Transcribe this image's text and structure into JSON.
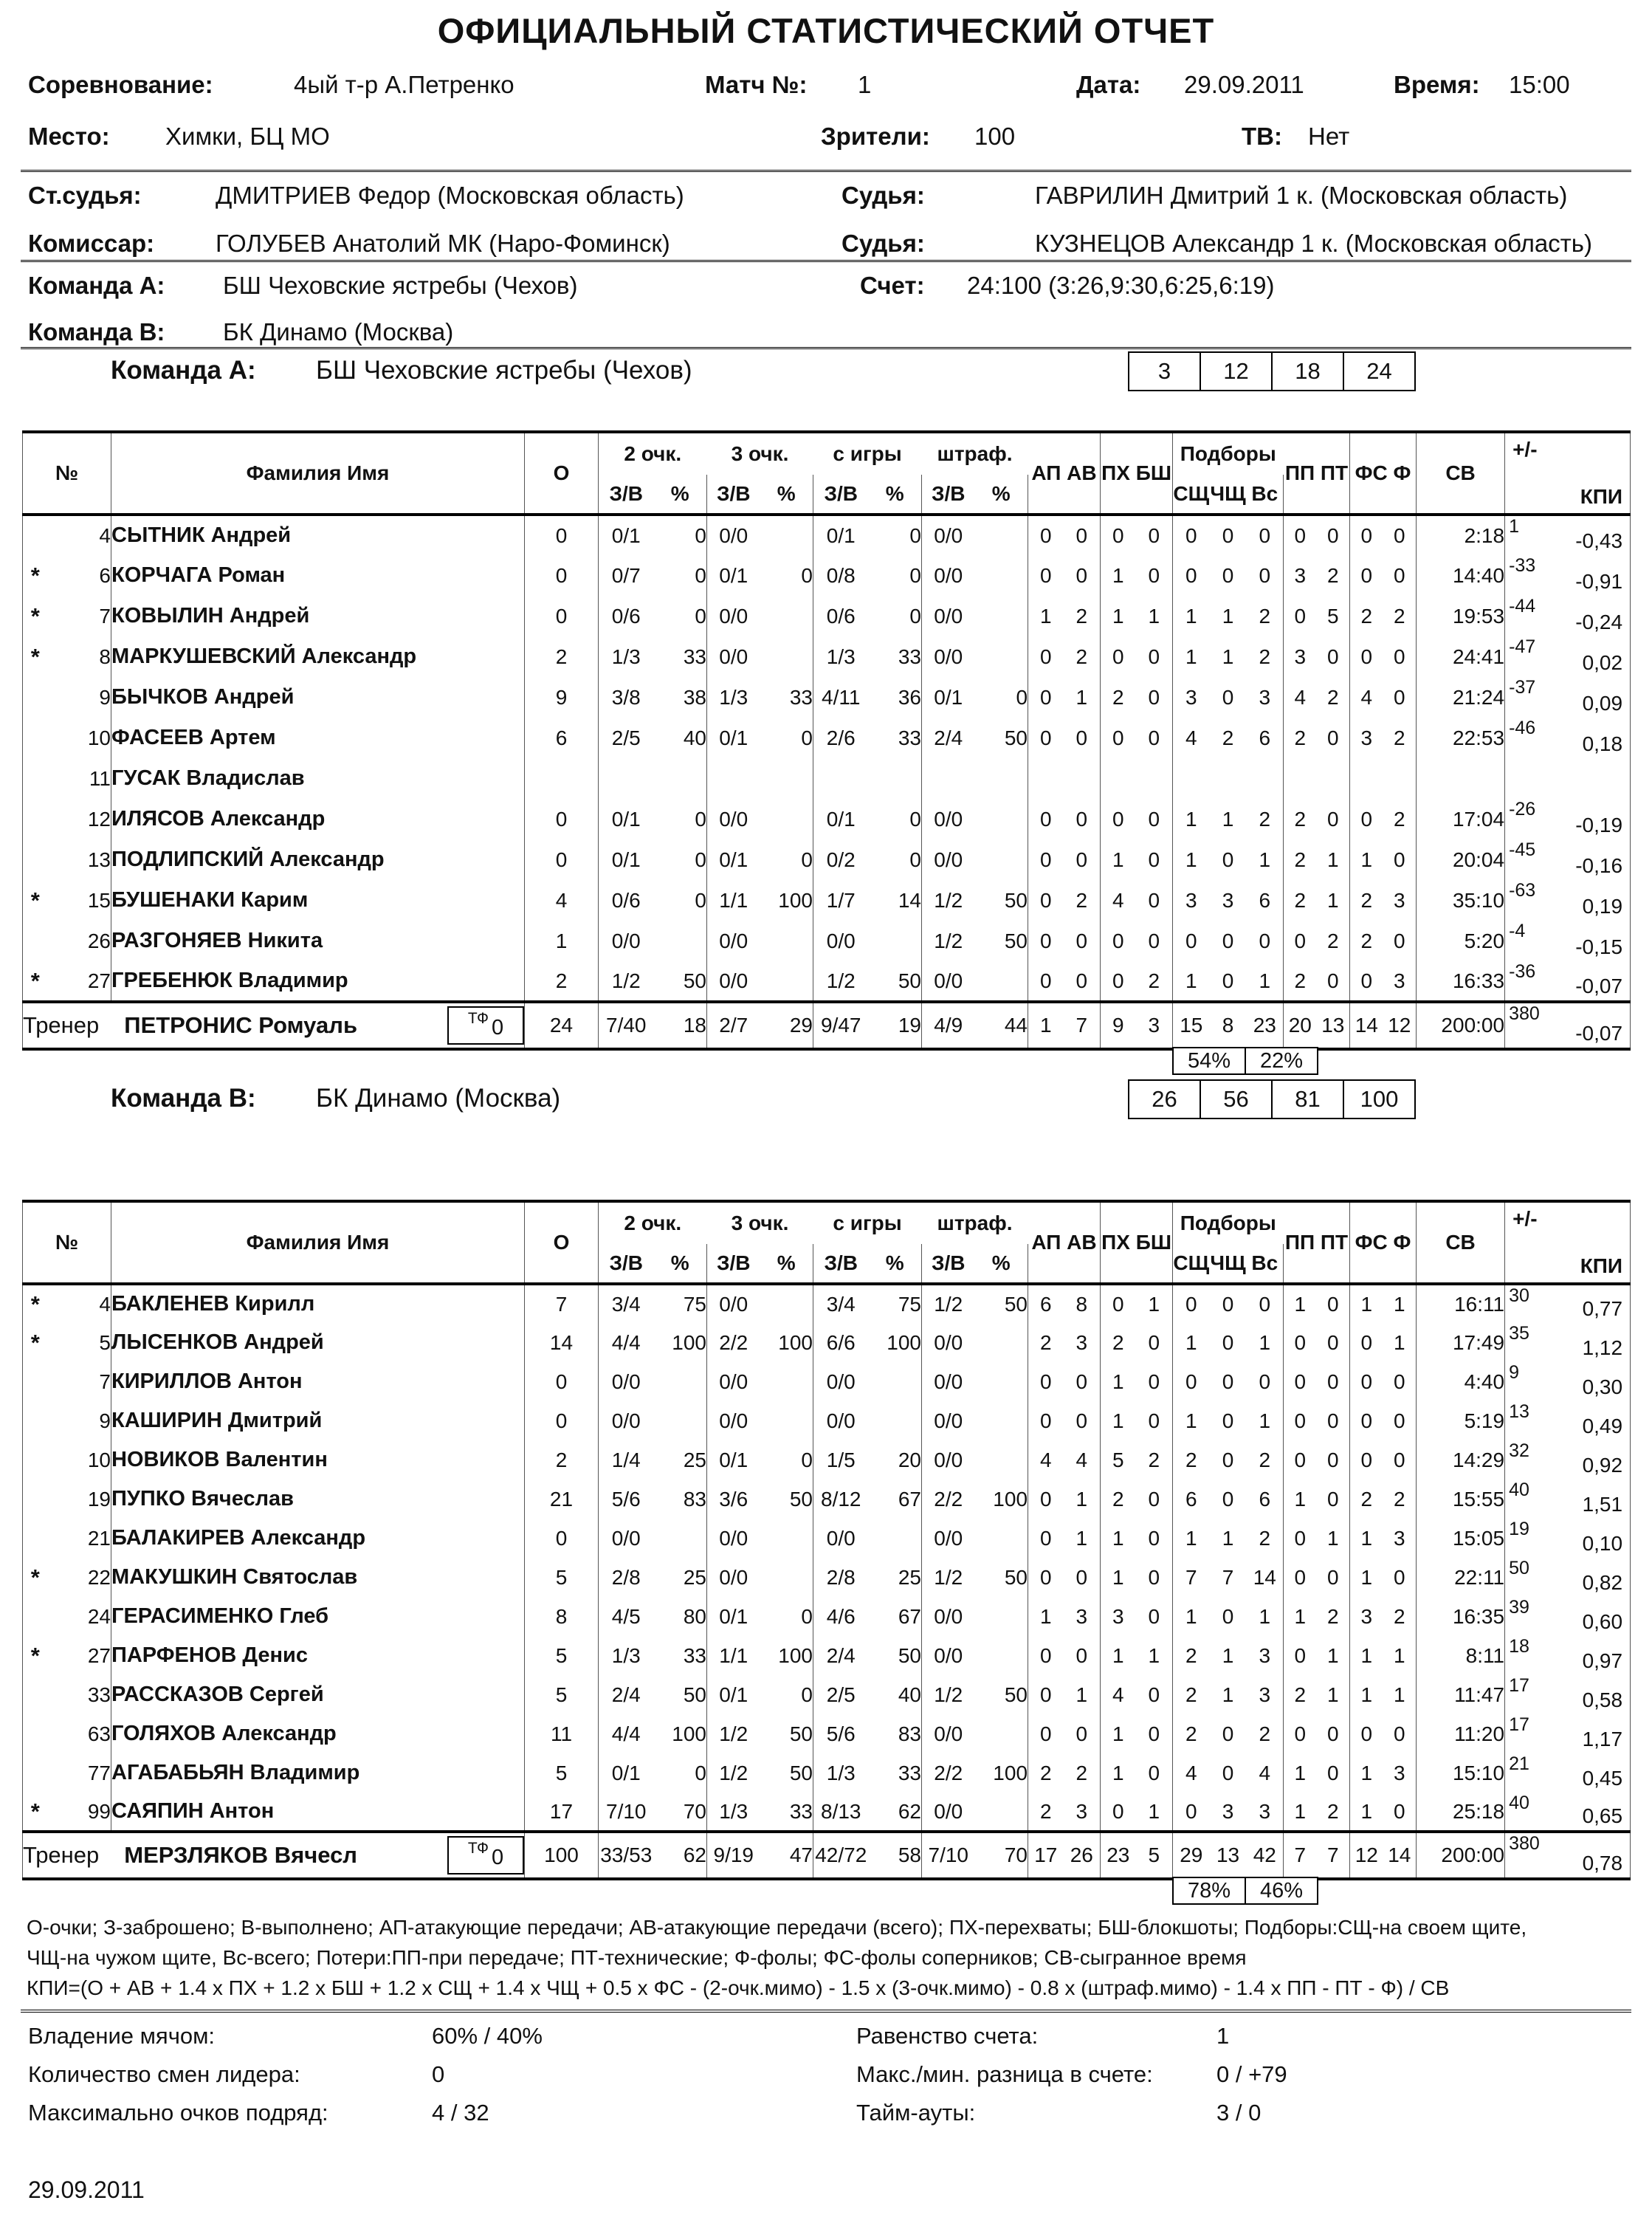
{
  "title": "ОФИЦИАЛЬНЫЙ СТАТИСТИЧЕСКИЙ ОТЧЕТ",
  "info": {
    "competition_label": "Соревнование:",
    "competition": "4ый т-р А.Петренко",
    "match_label": "Матч №:",
    "match": "1",
    "date_label": "Дата:",
    "date": "29.09.2011",
    "time_label": "Время:",
    "time": "15:00",
    "place_label": "Место:",
    "place": "Химки, БЦ МО",
    "spectators_label": "Зрители:",
    "spectators": "100",
    "tv_label": "ТВ:",
    "tv": "Нет",
    "chief_ref_label": "Ст.судья:",
    "chief_ref": "ДМИТРИЕВ Федор  (Московская область)",
    "ref1_label": "Судья:",
    "ref1": "ГАВРИЛИН Дмитрий 1 к. (Московская область)",
    "commissar_label": "Комиссар:",
    "commissar": "ГОЛУБЕВ Анатолий МК (Наро-Фоминск)",
    "ref2_label": "Судья:",
    "ref2": "КУЗНЕЦОВ Александр 1 к. (Московская область)",
    "teamA_label": "Команда А:",
    "teamA": "БШ Чеховские ястребы (Чехов)",
    "score_label": "Счет:",
    "score": "24:100 (3:26,9:30,6:25,6:19)",
    "teamB_label": "Команда В:",
    "teamB": "БК Динамо (Москва)"
  },
  "table_header": {
    "no": "№",
    "name": "Фамилия Имя",
    "o": "О",
    "p2": "2 очк.",
    "p3": "3 очк.",
    "fg": "с игры",
    "ft": "штраф.",
    "zv": "З/В",
    "pct": "%",
    "ap_av": "АП АВ",
    "px_bsh": "ПХ БШ",
    "rebounds": "Подборы",
    "sq": "СЩ",
    "chq": "ЧЩ",
    "vs": "Вс",
    "pp_pt": "ПП ПТ",
    "fs_f": "ФС Ф",
    "sv": "СВ",
    "plusminus": "+/-",
    "kpi": "КПИ"
  },
  "teamA": {
    "section_label": "Команда А:",
    "name": "БШ Чеховские ястребы (Чехов)",
    "quarters": [
      "3",
      "12",
      "18",
      "24"
    ],
    "players": [
      {
        "star": "",
        "num": "4",
        "name": "СЫТНИК Андрей",
        "o": "0",
        "p2": "0/1",
        "p2pct": "0",
        "p3": "0/0",
        "p3pct": "",
        "fg": "0/1",
        "fgpct": "0",
        "ft": "0/0",
        "ftpct": "",
        "ap": "0",
        "av": "0",
        "px": "0",
        "bsh": "0",
        "sq": "0",
        "chq": "0",
        "vs": "0",
        "pp": "0",
        "pt": "0",
        "fs": "0",
        "f": "0",
        "sv": "2:18",
        "pm": "1",
        "kpi": "-0,43"
      },
      {
        "star": "*",
        "num": "6",
        "name": "КОРЧАГА Роман",
        "o": "0",
        "p2": "0/7",
        "p2pct": "0",
        "p3": "0/1",
        "p3pct": "0",
        "fg": "0/8",
        "fgpct": "0",
        "ft": "0/0",
        "ftpct": "",
        "ap": "0",
        "av": "0",
        "px": "1",
        "bsh": "0",
        "sq": "0",
        "chq": "0",
        "vs": "0",
        "pp": "3",
        "pt": "2",
        "fs": "0",
        "f": "0",
        "sv": "14:40",
        "pm": "-33",
        "kpi": "-0,91"
      },
      {
        "star": "*",
        "num": "7",
        "name": "КОВЫЛИН Андрей",
        "o": "0",
        "p2": "0/6",
        "p2pct": "0",
        "p3": "0/0",
        "p3pct": "",
        "fg": "0/6",
        "fgpct": "0",
        "ft": "0/0",
        "ftpct": "",
        "ap": "1",
        "av": "2",
        "px": "1",
        "bsh": "1",
        "sq": "1",
        "chq": "1",
        "vs": "2",
        "pp": "0",
        "pt": "5",
        "fs": "2",
        "f": "2",
        "sv": "19:53",
        "pm": "-44",
        "kpi": "-0,24"
      },
      {
        "star": "*",
        "num": "8",
        "name": "МАРКУШЕВСКИЙ Александр",
        "o": "2",
        "p2": "1/3",
        "p2pct": "33",
        "p3": "0/0",
        "p3pct": "",
        "fg": "1/3",
        "fgpct": "33",
        "ft": "0/0",
        "ftpct": "",
        "ap": "0",
        "av": "2",
        "px": "0",
        "bsh": "0",
        "sq": "1",
        "chq": "1",
        "vs": "2",
        "pp": "3",
        "pt": "0",
        "fs": "0",
        "f": "0",
        "sv": "24:41",
        "pm": "-47",
        "kpi": "0,02"
      },
      {
        "star": "",
        "num": "9",
        "name": "БЫЧКОВ Андрей",
        "o": "9",
        "p2": "3/8",
        "p2pct": "38",
        "p3": "1/3",
        "p3pct": "33",
        "fg": "4/11",
        "fgpct": "36",
        "ft": "0/1",
        "ftpct": "0",
        "ap": "0",
        "av": "1",
        "px": "2",
        "bsh": "0",
        "sq": "3",
        "chq": "0",
        "vs": "3",
        "pp": "4",
        "pt": "2",
        "fs": "4",
        "f": "0",
        "sv": "21:24",
        "pm": "-37",
        "kpi": "0,09"
      },
      {
        "star": "",
        "num": "10",
        "name": "ФАСЕЕВ Артем",
        "o": "6",
        "p2": "2/5",
        "p2pct": "40",
        "p3": "0/1",
        "p3pct": "0",
        "fg": "2/6",
        "fgpct": "33",
        "ft": "2/4",
        "ftpct": "50",
        "ap": "0",
        "av": "0",
        "px": "0",
        "bsh": "0",
        "sq": "4",
        "chq": "2",
        "vs": "6",
        "pp": "2",
        "pt": "0",
        "fs": "3",
        "f": "2",
        "sv": "22:53",
        "pm": "-46",
        "kpi": "0,18"
      },
      {
        "star": "",
        "num": "11",
        "name": "ГУСАК Владислав",
        "o": "",
        "p2": "",
        "p2pct": "",
        "p3": "",
        "p3pct": "",
        "fg": "",
        "fgpct": "",
        "ft": "",
        "ftpct": "",
        "ap": "",
        "av": "",
        "px": "",
        "bsh": "",
        "sq": "",
        "chq": "",
        "vs": "",
        "pp": "",
        "pt": "",
        "fs": "",
        "f": "",
        "sv": "",
        "pm": "",
        "kpi": ""
      },
      {
        "star": "",
        "num": "12",
        "name": "ИЛЯСОВ Александр",
        "o": "0",
        "p2": "0/1",
        "p2pct": "0",
        "p3": "0/0",
        "p3pct": "",
        "fg": "0/1",
        "fgpct": "0",
        "ft": "0/0",
        "ftpct": "",
        "ap": "0",
        "av": "0",
        "px": "0",
        "bsh": "0",
        "sq": "1",
        "chq": "1",
        "vs": "2",
        "pp": "2",
        "pt": "0",
        "fs": "0",
        "f": "2",
        "sv": "17:04",
        "pm": "-26",
        "kpi": "-0,19"
      },
      {
        "star": "",
        "num": "13",
        "name": "ПОДЛИПСКИЙ Александр",
        "o": "0",
        "p2": "0/1",
        "p2pct": "0",
        "p3": "0/1",
        "p3pct": "0",
        "fg": "0/2",
        "fgpct": "0",
        "ft": "0/0",
        "ftpct": "",
        "ap": "0",
        "av": "0",
        "px": "1",
        "bsh": "0",
        "sq": "1",
        "chq": "0",
        "vs": "1",
        "pp": "2",
        "pt": "1",
        "fs": "1",
        "f": "0",
        "sv": "20:04",
        "pm": "-45",
        "kpi": "-0,16"
      },
      {
        "star": "*",
        "num": "15",
        "name": "БУШЕНАКИ Карим",
        "o": "4",
        "p2": "0/6",
        "p2pct": "0",
        "p3": "1/1",
        "p3pct": "100",
        "fg": "1/7",
        "fgpct": "14",
        "ft": "1/2",
        "ftpct": "50",
        "ap": "0",
        "av": "2",
        "px": "4",
        "bsh": "0",
        "sq": "3",
        "chq": "3",
        "vs": "6",
        "pp": "2",
        "pt": "1",
        "fs": "2",
        "f": "3",
        "sv": "35:10",
        "pm": "-63",
        "kpi": "0,19"
      },
      {
        "star": "",
        "num": "26",
        "name": "РАЗГОНЯЕВ Никита",
        "o": "1",
        "p2": "0/0",
        "p2pct": "",
        "p3": "0/0",
        "p3pct": "",
        "fg": "0/0",
        "fgpct": "",
        "ft": "1/2",
        "ftpct": "50",
        "ap": "0",
        "av": "0",
        "px": "0",
        "bsh": "0",
        "sq": "0",
        "chq": "0",
        "vs": "0",
        "pp": "0",
        "pt": "2",
        "fs": "2",
        "f": "0",
        "sv": "5:20",
        "pm": "-4",
        "kpi": "-0,15"
      },
      {
        "star": "*",
        "num": "27",
        "name": "ГРЕБЕНЮК Владимир",
        "o": "2",
        "p2": "1/2",
        "p2pct": "50",
        "p3": "0/0",
        "p3pct": "",
        "fg": "1/2",
        "fgpct": "50",
        "ft": "0/0",
        "ftpct": "",
        "ap": "0",
        "av": "0",
        "px": "0",
        "bsh": "2",
        "sq": "1",
        "chq": "0",
        "vs": "1",
        "pp": "2",
        "pt": "0",
        "fs": "0",
        "f": "3",
        "sv": "16:33",
        "pm": "-36",
        "kpi": "-0,07"
      }
    ],
    "coach_label": "Тренер",
    "coach": "ПЕТРОНИС Ромуаль",
    "tf_label": "ТФ",
    "tf": "0",
    "totals": {
      "o": "24",
      "p2": "7/40",
      "p2pct": "18",
      "p3": "2/7",
      "p3pct": "29",
      "fg": "9/47",
      "fgpct": "19",
      "ft": "4/9",
      "ftpct": "44",
      "ap": "1",
      "av": "7",
      "px": "9",
      "bsh": "3",
      "sq": "15",
      "chq": "8",
      "vs": "23",
      "pp": "20",
      "pt": "13",
      "fs": "14",
      "f": "12",
      "sv": "200:00",
      "pm": "380",
      "kpi": "-0,07"
    },
    "reb_pct": [
      "54%",
      "22%"
    ]
  },
  "teamB": {
    "section_label": "Команда В:",
    "name": "БК Динамо (Москва)",
    "quarters": [
      "26",
      "56",
      "81",
      "100"
    ],
    "players": [
      {
        "star": "*",
        "num": "4",
        "name": "БАКЛЕНЕВ Кирилл",
        "o": "7",
        "p2": "3/4",
        "p2pct": "75",
        "p3": "0/0",
        "p3pct": "",
        "fg": "3/4",
        "fgpct": "75",
        "ft": "1/2",
        "ftpct": "50",
        "ap": "6",
        "av": "8",
        "px": "0",
        "bsh": "1",
        "sq": "0",
        "chq": "0",
        "vs": "0",
        "pp": "1",
        "pt": "0",
        "fs": "1",
        "f": "1",
        "sv": "16:11",
        "pm": "30",
        "kpi": "0,77"
      },
      {
        "star": "*",
        "num": "5",
        "name": "ЛЫСЕНКОВ Андрей",
        "o": "14",
        "p2": "4/4",
        "p2pct": "100",
        "p3": "2/2",
        "p3pct": "100",
        "fg": "6/6",
        "fgpct": "100",
        "ft": "0/0",
        "ftpct": "",
        "ap": "2",
        "av": "3",
        "px": "2",
        "bsh": "0",
        "sq": "1",
        "chq": "0",
        "vs": "1",
        "pp": "0",
        "pt": "0",
        "fs": "0",
        "f": "1",
        "sv": "17:49",
        "pm": "35",
        "kpi": "1,12"
      },
      {
        "star": "",
        "num": "7",
        "name": "КИРИЛЛОВ Антон",
        "o": "0",
        "p2": "0/0",
        "p2pct": "",
        "p3": "0/0",
        "p3pct": "",
        "fg": "0/0",
        "fgpct": "",
        "ft": "0/0",
        "ftpct": "",
        "ap": "0",
        "av": "0",
        "px": "1",
        "bsh": "0",
        "sq": "0",
        "chq": "0",
        "vs": "0",
        "pp": "0",
        "pt": "0",
        "fs": "0",
        "f": "0",
        "sv": "4:40",
        "pm": "9",
        "kpi": "0,30"
      },
      {
        "star": "",
        "num": "9",
        "name": "КАШИРИН Дмитрий",
        "o": "0",
        "p2": "0/0",
        "p2pct": "",
        "p3": "0/0",
        "p3pct": "",
        "fg": "0/0",
        "fgpct": "",
        "ft": "0/0",
        "ftpct": "",
        "ap": "0",
        "av": "0",
        "px": "1",
        "bsh": "0",
        "sq": "1",
        "chq": "0",
        "vs": "1",
        "pp": "0",
        "pt": "0",
        "fs": "0",
        "f": "0",
        "sv": "5:19",
        "pm": "13",
        "kpi": "0,49"
      },
      {
        "star": "",
        "num": "10",
        "name": "НОВИКОВ Валентин",
        "o": "2",
        "p2": "1/4",
        "p2pct": "25",
        "p3": "0/1",
        "p3pct": "0",
        "fg": "1/5",
        "fgpct": "20",
        "ft": "0/0",
        "ftpct": "",
        "ap": "4",
        "av": "4",
        "px": "5",
        "bsh": "2",
        "sq": "2",
        "chq": "0",
        "vs": "2",
        "pp": "0",
        "pt": "0",
        "fs": "0",
        "f": "0",
        "sv": "14:29",
        "pm": "32",
        "kpi": "0,92"
      },
      {
        "star": "",
        "num": "19",
        "name": "ПУПКО Вячеслав",
        "o": "21",
        "p2": "5/6",
        "p2pct": "83",
        "p3": "3/6",
        "p3pct": "50",
        "fg": "8/12",
        "fgpct": "67",
        "ft": "2/2",
        "ftpct": "100",
        "ap": "0",
        "av": "1",
        "px": "2",
        "bsh": "0",
        "sq": "6",
        "chq": "0",
        "vs": "6",
        "pp": "1",
        "pt": "0",
        "fs": "2",
        "f": "2",
        "sv": "15:55",
        "pm": "40",
        "kpi": "1,51"
      },
      {
        "star": "",
        "num": "21",
        "name": "БАЛАКИРЕВ Александр",
        "o": "0",
        "p2": "0/0",
        "p2pct": "",
        "p3": "0/0",
        "p3pct": "",
        "fg": "0/0",
        "fgpct": "",
        "ft": "0/0",
        "ftpct": "",
        "ap": "0",
        "av": "1",
        "px": "1",
        "bsh": "0",
        "sq": "1",
        "chq": "1",
        "vs": "2",
        "pp": "0",
        "pt": "1",
        "fs": "1",
        "f": "3",
        "sv": "15:05",
        "pm": "19",
        "kpi": "0,10"
      },
      {
        "star": "*",
        "num": "22",
        "name": "МАКУШКИН Святослав",
        "o": "5",
        "p2": "2/8",
        "p2pct": "25",
        "p3": "0/0",
        "p3pct": "",
        "fg": "2/8",
        "fgpct": "25",
        "ft": "1/2",
        "ftpct": "50",
        "ap": "0",
        "av": "0",
        "px": "1",
        "bsh": "0",
        "sq": "7",
        "chq": "7",
        "vs": "14",
        "pp": "0",
        "pt": "0",
        "fs": "1",
        "f": "0",
        "sv": "22:11",
        "pm": "50",
        "kpi": "0,82"
      },
      {
        "star": "",
        "num": "24",
        "name": "ГЕРАСИМЕНКО Глеб",
        "o": "8",
        "p2": "4/5",
        "p2pct": "80",
        "p3": "0/1",
        "p3pct": "0",
        "fg": "4/6",
        "fgpct": "67",
        "ft": "0/0",
        "ftpct": "",
        "ap": "1",
        "av": "3",
        "px": "3",
        "bsh": "0",
        "sq": "1",
        "chq": "0",
        "vs": "1",
        "pp": "1",
        "pt": "2",
        "fs": "3",
        "f": "2",
        "sv": "16:35",
        "pm": "39",
        "kpi": "0,60"
      },
      {
        "star": "*",
        "num": "27",
        "name": "ПАРФЕНОВ Денис",
        "o": "5",
        "p2": "1/3",
        "p2pct": "33",
        "p3": "1/1",
        "p3pct": "100",
        "fg": "2/4",
        "fgpct": "50",
        "ft": "0/0",
        "ftpct": "",
        "ap": "0",
        "av": "0",
        "px": "1",
        "bsh": "1",
        "sq": "2",
        "chq": "1",
        "vs": "3",
        "pp": "0",
        "pt": "1",
        "fs": "1",
        "f": "1",
        "sv": "8:11",
        "pm": "18",
        "kpi": "0,97"
      },
      {
        "star": "",
        "num": "33",
        "name": "РАССКАЗОВ Сергей",
        "o": "5",
        "p2": "2/4",
        "p2pct": "50",
        "p3": "0/1",
        "p3pct": "0",
        "fg": "2/5",
        "fgpct": "40",
        "ft": "1/2",
        "ftpct": "50",
        "ap": "0",
        "av": "1",
        "px": "4",
        "bsh": "0",
        "sq": "2",
        "chq": "1",
        "vs": "3",
        "pp": "2",
        "pt": "1",
        "fs": "1",
        "f": "1",
        "sv": "11:47",
        "pm": "17",
        "kpi": "0,58"
      },
      {
        "star": "",
        "num": "63",
        "name": "ГОЛЯХОВ Александр",
        "o": "11",
        "p2": "4/4",
        "p2pct": "100",
        "p3": "1/2",
        "p3pct": "50",
        "fg": "5/6",
        "fgpct": "83",
        "ft": "0/0",
        "ftpct": "",
        "ap": "0",
        "av": "0",
        "px": "1",
        "bsh": "0",
        "sq": "2",
        "chq": "0",
        "vs": "2",
        "pp": "0",
        "pt": "0",
        "fs": "0",
        "f": "0",
        "sv": "11:20",
        "pm": "17",
        "kpi": "1,17"
      },
      {
        "star": "",
        "num": "77",
        "name": "АГАБАБЬЯН Владимир",
        "o": "5",
        "p2": "0/1",
        "p2pct": "0",
        "p3": "1/2",
        "p3pct": "50",
        "fg": "1/3",
        "fgpct": "33",
        "ft": "2/2",
        "ftpct": "100",
        "ap": "2",
        "av": "2",
        "px": "1",
        "bsh": "0",
        "sq": "4",
        "chq": "0",
        "vs": "4",
        "pp": "1",
        "pt": "0",
        "fs": "1",
        "f": "3",
        "sv": "15:10",
        "pm": "21",
        "kpi": "0,45"
      },
      {
        "star": "*",
        "num": "99",
        "name": "САЯПИН Антон",
        "o": "17",
        "p2": "7/10",
        "p2pct": "70",
        "p3": "1/3",
        "p3pct": "33",
        "fg": "8/13",
        "fgpct": "62",
        "ft": "0/0",
        "ftpct": "",
        "ap": "2",
        "av": "3",
        "px": "0",
        "bsh": "1",
        "sq": "0",
        "chq": "3",
        "vs": "3",
        "pp": "1",
        "pt": "2",
        "fs": "1",
        "f": "0",
        "sv": "25:18",
        "pm": "40",
        "kpi": "0,65"
      }
    ],
    "coach_label": "Тренер",
    "coach": "МЕРЗЛЯКОВ Вячесл",
    "tf_label": "ТФ",
    "tf": "0",
    "totals": {
      "o": "100",
      "p2": "33/53",
      "p2pct": "62",
      "p3": "9/19",
      "p3pct": "47",
      "fg": "42/72",
      "fgpct": "58",
      "ft": "7/10",
      "ftpct": "70",
      "ap": "17",
      "av": "26",
      "px": "23",
      "bsh": "5",
      "sq": "29",
      "chq": "13",
      "vs": "42",
      "pp": "7",
      "pt": "7",
      "fs": "12",
      "f": "14",
      "sv": "200:00",
      "pm": "380",
      "kpi": "0,78"
    },
    "reb_pct": [
      "78%",
      "46%"
    ]
  },
  "legend": [
    "О-очки; З-заброшено; В-выполнено; АП-атакующие передачи; АВ-атакующие передачи (всего); ПХ-перехваты; БШ-блокшоты; Подборы:СЩ-на своем щите,",
    "ЧЩ-на чужом щите, Вс-всего; Потери:ПП-при передаче; ПТ-технические; Ф-фолы; ФС-фолы соперников; СВ-сыгранное время",
    "КПИ=(О + АВ + 1.4 х ПХ + 1.2 х БШ + 1.2 х СЩ + 1.4 х ЧЩ + 0.5 х ФС - (2-очк.мимо) - 1.5 х (3-очк.мимо) - 0.8 х (штраф.мимо) - 1.4 х ПП - ПТ - Ф) / СВ"
  ],
  "footer": {
    "possession_label": "Владение мячом:",
    "possession": "60% / 40%",
    "lead_changes_label": "Количество смен лидера:",
    "lead_changes": "0",
    "max_run_label": "Максимально очков подряд:",
    "max_run": "4 / 32",
    "ties_label": "Равенство счета:",
    "ties": "1",
    "max_diff_label": "Макс./мин. разница в счете:",
    "max_diff": "0 / +79",
    "timeouts_label": "Тайм-ауты:",
    "timeouts": "3 / 0"
  },
  "page_date": "29.09.2011"
}
